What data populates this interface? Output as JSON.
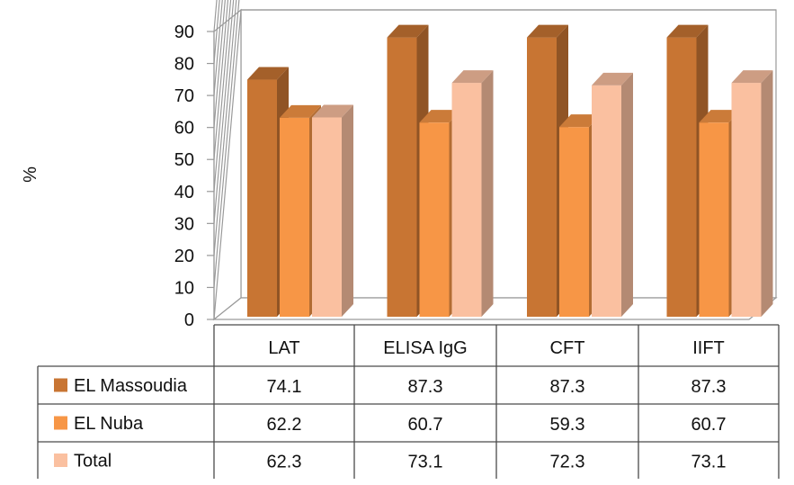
{
  "chart_data": {
    "type": "bar",
    "style": "3d-clustered-column-with-data-table",
    "categories": [
      "LAT",
      "ELISA IgG",
      "CFT",
      "IIFT"
    ],
    "series": [
      {
        "name": "EL Massoudia",
        "values": [
          74.1,
          87.3,
          87.3,
          87.3
        ],
        "color": "#C87533"
      },
      {
        "name": "EL Nuba",
        "values": [
          62.2,
          60.7,
          59.3,
          60.7
        ],
        "color": "#F79646"
      },
      {
        "name": "Total",
        "values": [
          62.3,
          73.1,
          72.3,
          73.1
        ],
        "color": "#FAC0A0"
      }
    ],
    "table_cells": [
      [
        "74.1",
        "87.3",
        "87.3",
        "87.3"
      ],
      [
        "62.2",
        "60.7",
        "59.3",
        "60.7"
      ],
      [
        "62.3",
        "73.1",
        "72.3",
        "73.1"
      ]
    ],
    "ylabel": "%",
    "ylim": [
      0,
      90
    ],
    "yticks": [
      0,
      10,
      20,
      30,
      40,
      50,
      60,
      70,
      80,
      90
    ],
    "grid": true,
    "legend": "data-table"
  }
}
